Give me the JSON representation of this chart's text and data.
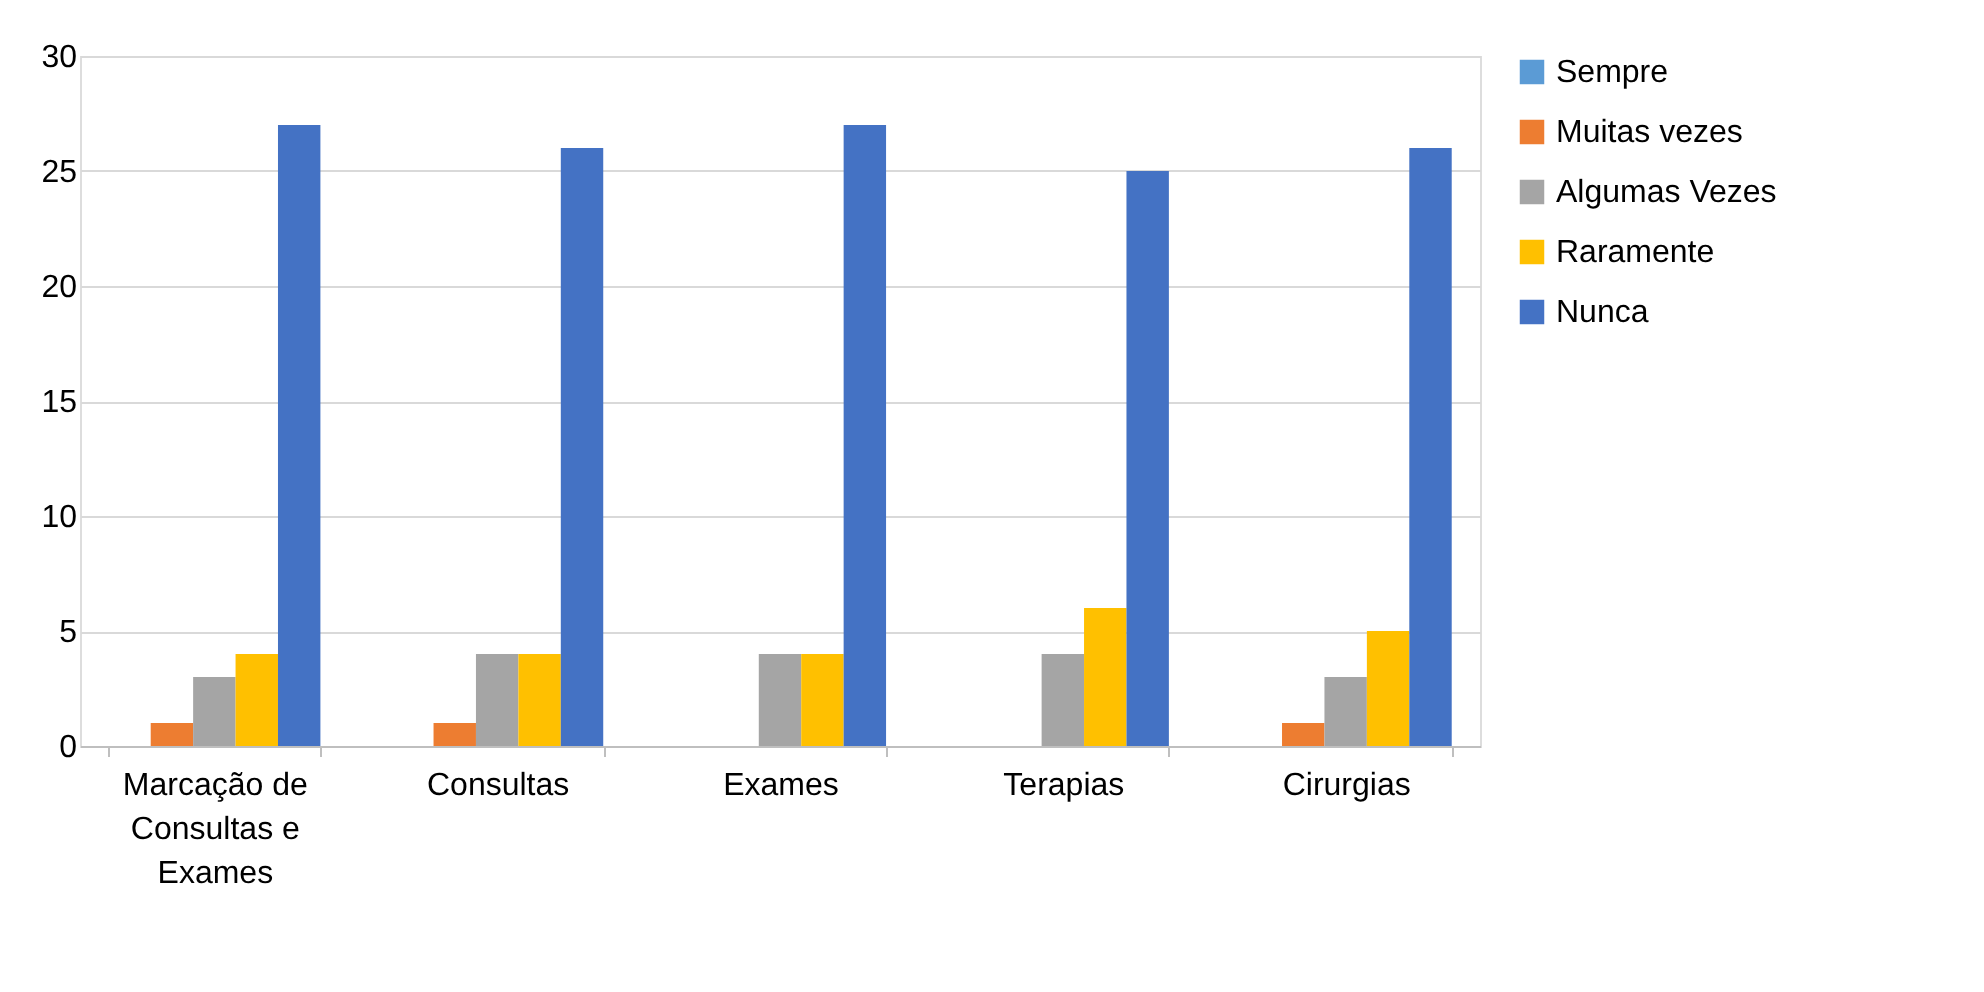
{
  "chart_data": {
    "type": "bar",
    "categories": [
      "Marcação de Consultas e Exames",
      "Consultas",
      "Exames",
      "Terapias",
      "Cirurgias"
    ],
    "series": [
      {
        "name": "Sempre",
        "color": "#5b9bd5",
        "values": [
          0,
          0,
          0,
          0,
          0
        ]
      },
      {
        "name": "Muitas vezes",
        "color": "#ed7d31",
        "values": [
          1,
          1,
          0,
          0,
          1
        ]
      },
      {
        "name": "Algumas Vezes",
        "color": "#a5a5a5",
        "values": [
          3,
          4,
          4,
          4,
          3
        ]
      },
      {
        "name": "Raramente",
        "color": "#ffc000",
        "values": [
          4,
          4,
          4,
          6,
          5
        ]
      },
      {
        "name": "Nunca",
        "color": "#4472c4",
        "values": [
          27,
          26,
          27,
          25,
          26
        ]
      }
    ],
    "ylim": [
      0,
      30
    ],
    "yticks": [
      0,
      5,
      10,
      15,
      20,
      25,
      30
    ],
    "grid": "y",
    "legend": "right"
  }
}
